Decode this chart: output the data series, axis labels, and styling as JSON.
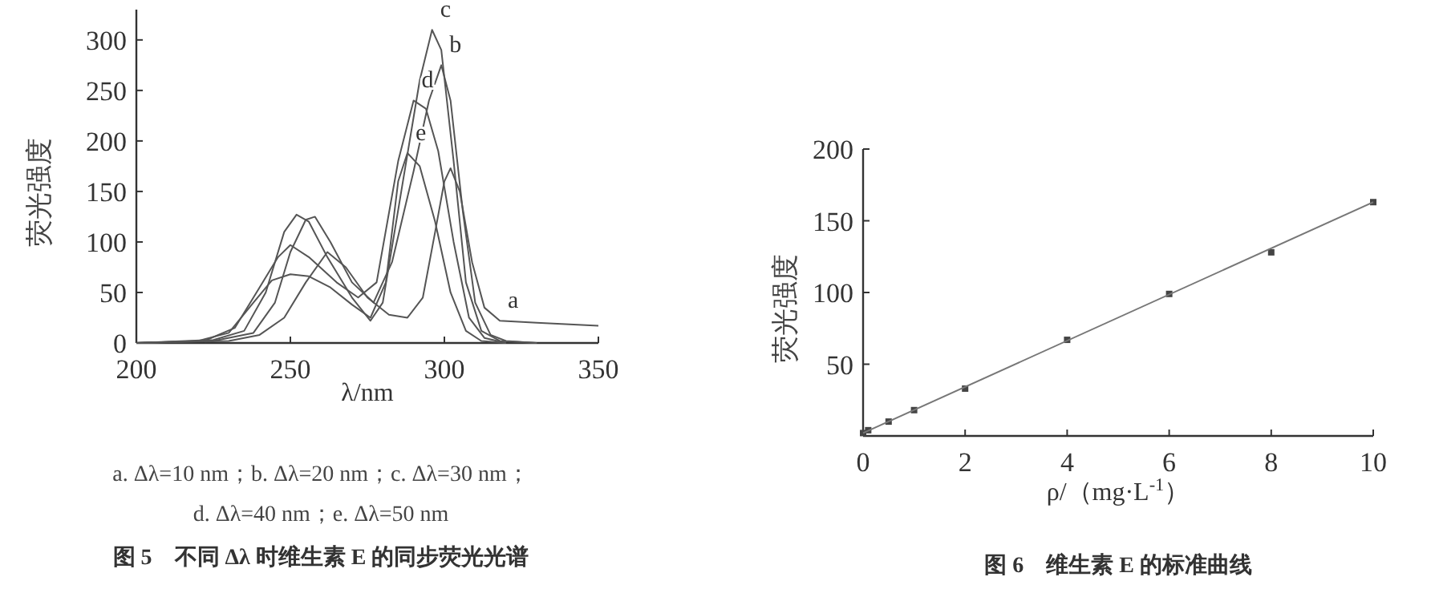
{
  "chart_data": [
    {
      "type": "line",
      "title": "图 5　不同 Δλ 时维生素 E 的同步荧光光谱",
      "xlabel": "λ/nm",
      "ylabel": "荧光强度",
      "xlim": [
        200,
        350
      ],
      "ylim": [
        0,
        330
      ],
      "xticks": [
        200,
        250,
        300,
        350
      ],
      "yticks": [
        0,
        50,
        100,
        150,
        200,
        250,
        300
      ],
      "series": [
        {
          "color": "#555555",
          "x": [
            200,
            230,
            240,
            248,
            255,
            262,
            268,
            275,
            282,
            288,
            293,
            297,
            300,
            302,
            305,
            309,
            313,
            318,
            330,
            350
          ],
          "values": [
            0,
            2,
            8,
            25,
            60,
            90,
            75,
            45,
            28,
            25,
            45,
            110,
            160,
            173,
            150,
            80,
            35,
            22,
            20,
            17
          ]
        },
        {
          "color": "#555555",
          "x": [
            200,
            225,
            238,
            245,
            250,
            255,
            258,
            263,
            270,
            277,
            283,
            290,
            295,
            299,
            302,
            306,
            310,
            315,
            320,
            330
          ],
          "values": [
            0,
            2,
            10,
            40,
            90,
            122,
            125,
            100,
            60,
            40,
            80,
            170,
            240,
            275,
            240,
            130,
            40,
            8,
            2,
            0
          ]
        },
        {
          "color": "#555555",
          "x": [
            200,
            225,
            235,
            242,
            248,
            252,
            256,
            262,
            270,
            276,
            280,
            286,
            292,
            296,
            299,
            303,
            307,
            312,
            318,
            330
          ],
          "values": [
            0,
            3,
            12,
            50,
            110,
            127,
            120,
            85,
            45,
            22,
            40,
            150,
            260,
            310,
            290,
            180,
            60,
            12,
            2,
            0
          ]
        },
        {
          "color": "#555555",
          "x": [
            200,
            222,
            232,
            240,
            246,
            250,
            256,
            265,
            272,
            278,
            285,
            290,
            294,
            298,
            303,
            308,
            313,
            320
          ],
          "values": [
            0,
            2,
            15,
            55,
            85,
            97,
            85,
            60,
            45,
            60,
            180,
            240,
            232,
            190,
            100,
            25,
            5,
            0
          ]
        },
        {
          "color": "#555555",
          "x": [
            200,
            220,
            230,
            238,
            244,
            250,
            256,
            263,
            270,
            276,
            281,
            285,
            288,
            292,
            297,
            302,
            307,
            312,
            320
          ],
          "values": [
            0,
            2,
            10,
            40,
            62,
            68,
            66,
            55,
            38,
            25,
            60,
            160,
            188,
            175,
            120,
            50,
            12,
            2,
            0
          ]
        }
      ],
      "annotations": [
        {
          "text": "a",
          "x": 318,
          "y": 22
        },
        {
          "text": "b",
          "x": 299,
          "y": 275
        },
        {
          "text": "c",
          "x": 296,
          "y": 310
        },
        {
          "text": "d",
          "x": 290,
          "y": 240
        },
        {
          "text": "e",
          "x": 288,
          "y": 188
        },
        "a. Δλ=10 nm；b. Δλ=20 nm；c. Δλ=30 nm；",
        "d. Δλ=40 nm；e. Δλ=50 nm"
      ]
    },
    {
      "type": "scatter",
      "title": "图 6　维生素 E 的标准曲线",
      "xlabel": "ρ/（mg·L$^{-1}$）",
      "ylabel": "荧光强度",
      "xlim": [
        0,
        10
      ],
      "ylim": [
        0,
        200
      ],
      "xticks": [
        0,
        2,
        4,
        6,
        8,
        10
      ],
      "yticks": [
        50,
        100,
        150,
        200
      ],
      "series": [
        {
          "marker": "square",
          "color": "#444444",
          "x": [
            0,
            0.1,
            0.5,
            1,
            2,
            4,
            6,
            8,
            10
          ],
          "values": [
            2,
            4,
            10,
            18,
            33,
            67,
            99,
            128,
            163
          ]
        },
        {
          "type": "line",
          "color": "#777777",
          "x": [
            0,
            10
          ],
          "values": [
            2,
            163
          ]
        }
      ]
    }
  ]
}
